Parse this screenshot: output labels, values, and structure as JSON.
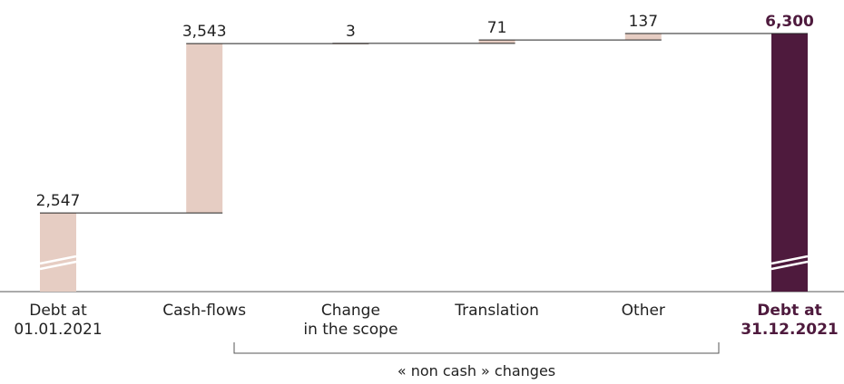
{
  "chart_data": {
    "type": "waterfall",
    "categories": [
      "Debt at\n01.01.2021",
      "Cash-flows",
      "Change\nin the scope",
      "Translation",
      "Other",
      "Debt at\n31.12.2021"
    ],
    "measure": [
      "absolute",
      "relative",
      "relative",
      "relative",
      "relative",
      "total"
    ],
    "values": [
      2547,
      3543,
      3,
      71,
      137,
      6300
    ],
    "value_labels": [
      "2,547",
      "3,543",
      "3",
      "71",
      "137",
      "6,300"
    ],
    "step_color": "#e6cdc3",
    "total_color": "#4e1a3d",
    "ylim": [
      900,
      6300
    ],
    "annotation": "« non cash » changes"
  }
}
